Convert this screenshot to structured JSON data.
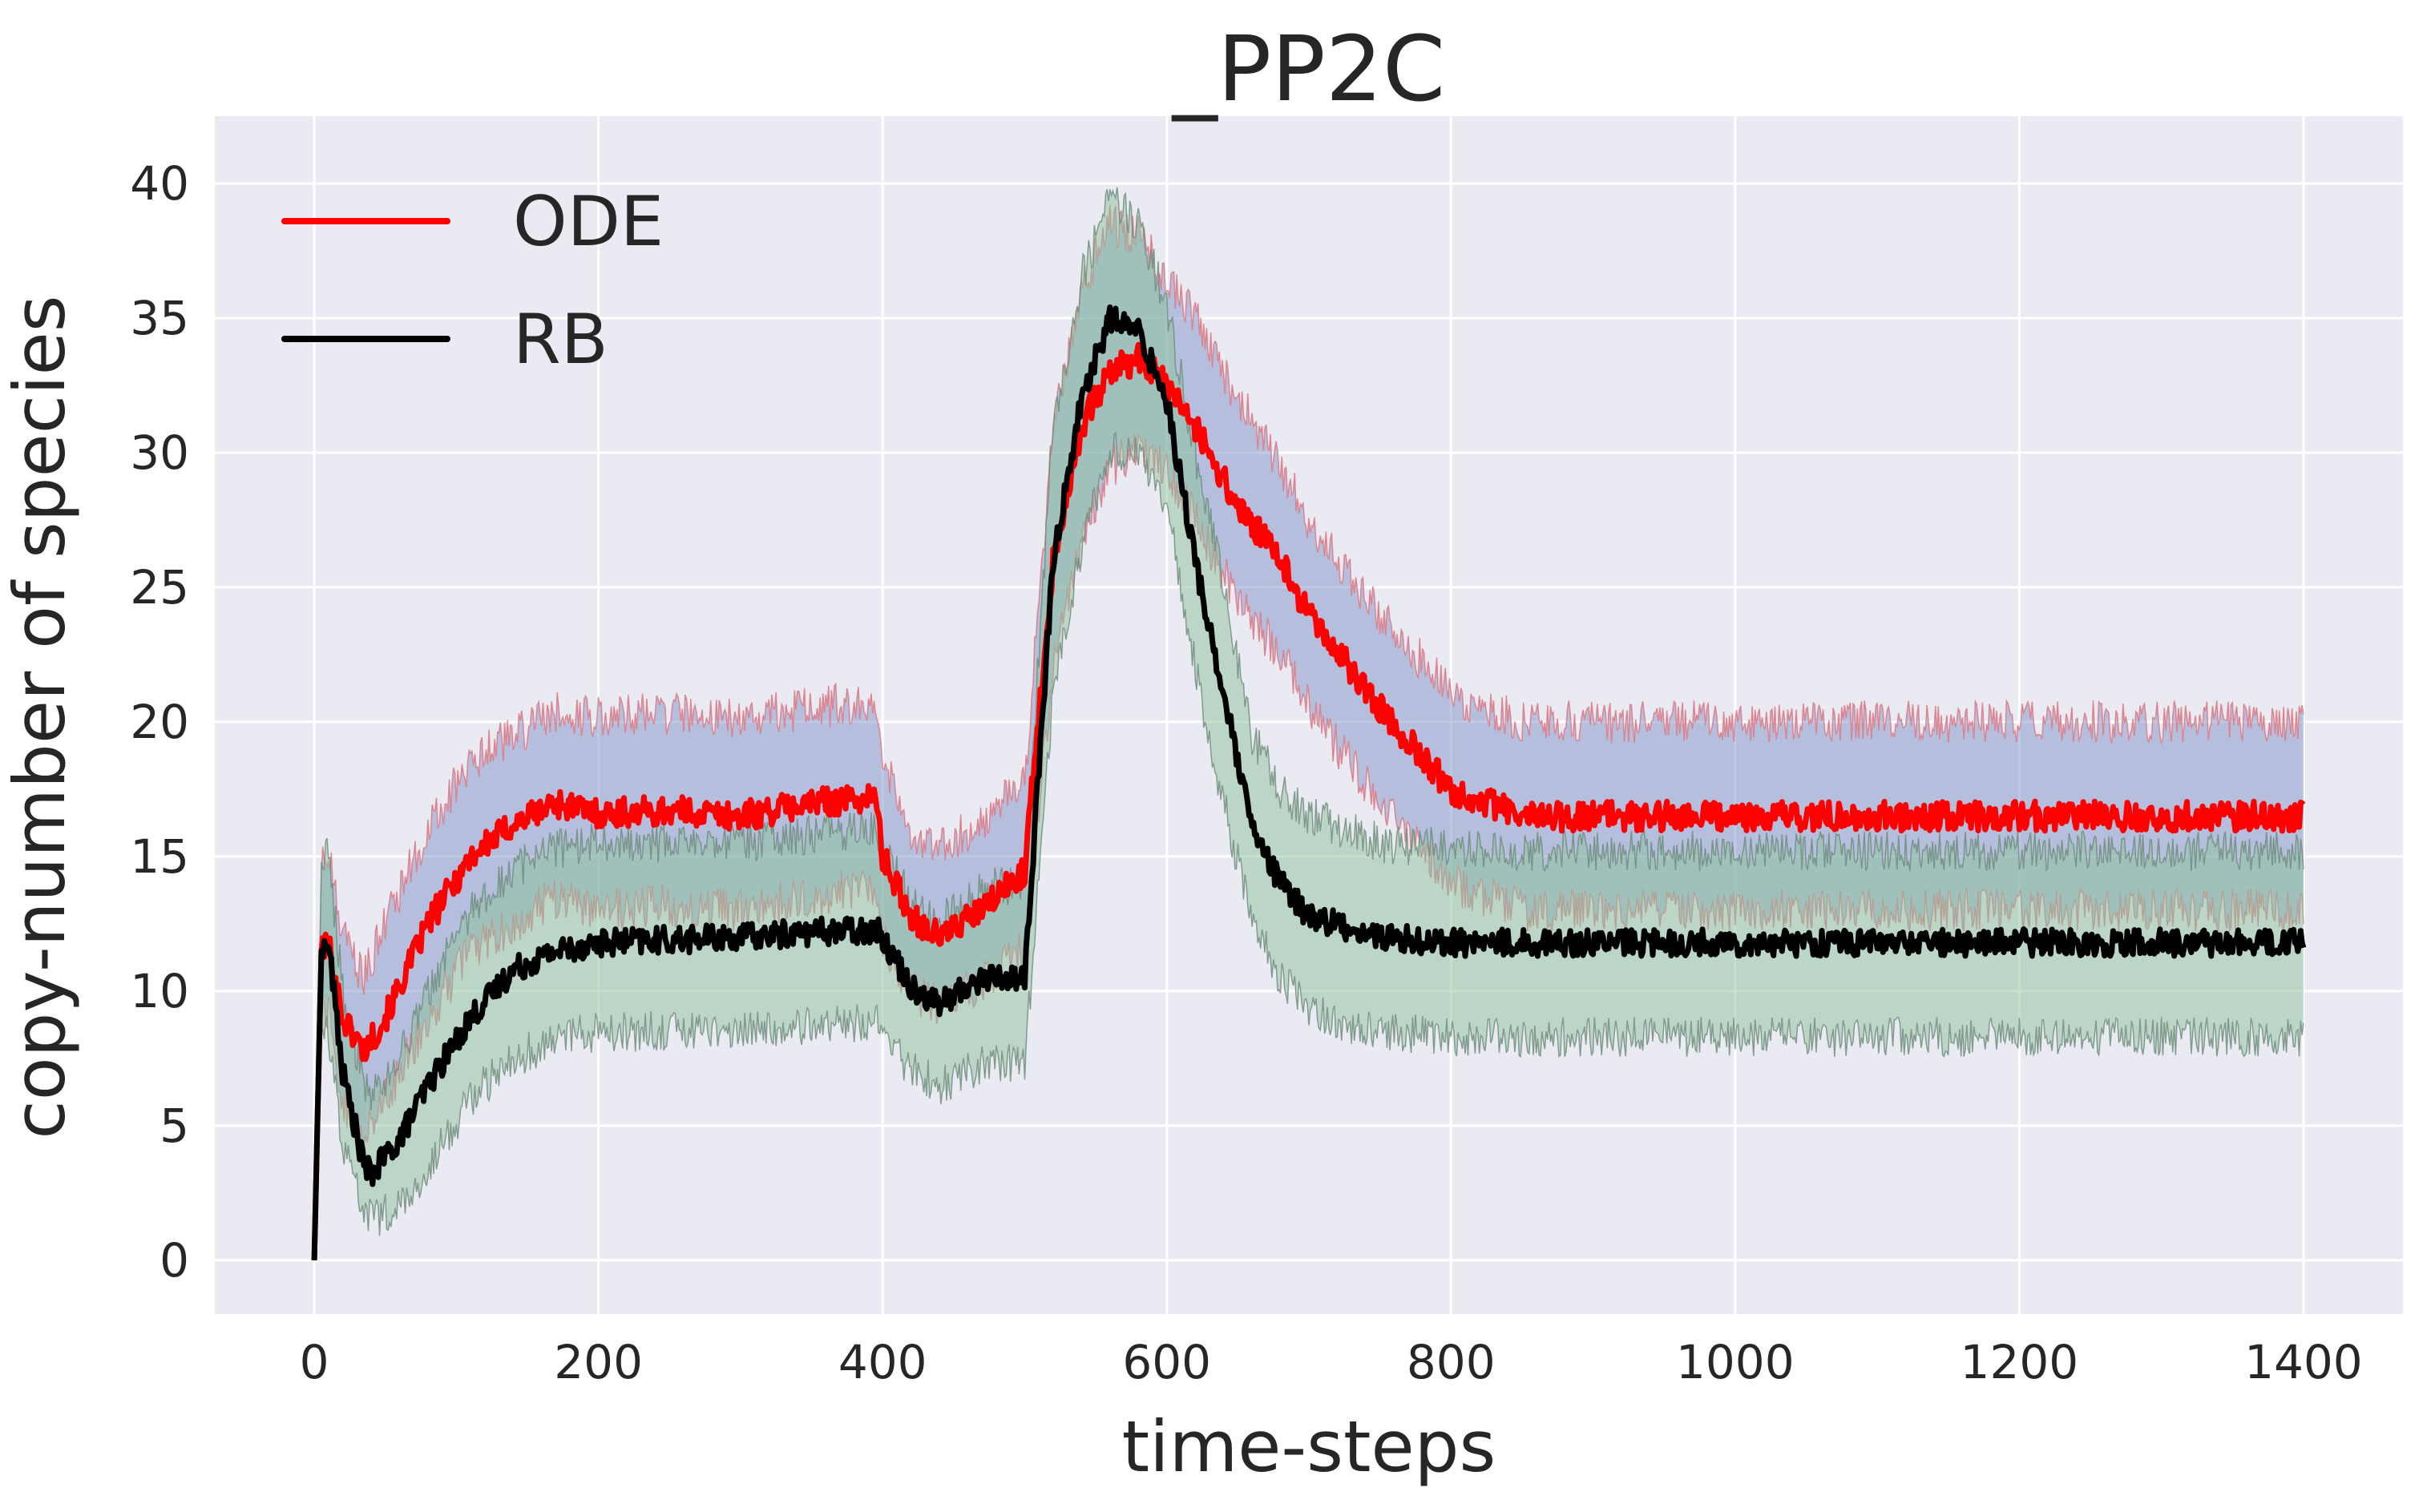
{
  "chart_data": {
    "type": "line",
    "title": "_PP2C",
    "xlabel": "time-steps",
    "ylabel": "copy-number of species",
    "xlim": [
      -70,
      1470
    ],
    "ylim": [
      -2,
      42.5
    ],
    "xticks": [
      0,
      200,
      400,
      600,
      800,
      1000,
      1200,
      1400
    ],
    "yticks": [
      0,
      5,
      10,
      15,
      20,
      25,
      30,
      35,
      40
    ],
    "grid": true,
    "legend_position": "top-left",
    "background": "#eaeaf2",
    "series": [
      {
        "name": "ODE",
        "color": "#ff0000",
        "band_color": "#7f93c8",
        "band_edge_color": "#e0707a",
        "noise": 0.55,
        "band_noise": 0.8,
        "x": [
          0,
          5,
          10,
          20,
          35,
          50,
          80,
          110,
          140,
          170,
          200,
          250,
          300,
          350,
          395,
          400,
          420,
          440,
          470,
          500,
          520,
          540,
          560,
          580,
          600,
          620,
          650,
          680,
          700,
          750,
          800,
          850,
          900,
          950,
          1000,
          1100,
          1200,
          1300,
          1400
        ],
        "mean": [
          0,
          11.5,
          11.8,
          9,
          7.8,
          9,
          12.5,
          15,
          16.2,
          17,
          16.6,
          16.7,
          16.5,
          17,
          17.2,
          15,
          12.8,
          12,
          13,
          14.5,
          26,
          31,
          33,
          33.5,
          32.5,
          31,
          28,
          26,
          24,
          20.5,
          17.5,
          16.5,
          16.5,
          16.5,
          16.5,
          16.5,
          16.5,
          16.5,
          16.5
        ],
        "upper": [
          0,
          14.5,
          15.2,
          12,
          10.5,
          12.5,
          16,
          18.5,
          19.5,
          20.3,
          20.2,
          20.3,
          20.2,
          20.5,
          20.8,
          18.5,
          16,
          15.3,
          16.3,
          17.8,
          31,
          36,
          38.5,
          38,
          36.5,
          35,
          32,
          29.5,
          27.5,
          24,
          21,
          20,
          20,
          20,
          20,
          20,
          20,
          20,
          20
        ],
        "lower": [
          0,
          9,
          9.2,
          6,
          4.5,
          6,
          9,
          11.5,
          12.5,
          13.5,
          13,
          13.2,
          13,
          13.5,
          14,
          12,
          10,
          9.5,
          10.3,
          11.5,
          22,
          27,
          29.5,
          30,
          29.5,
          27.5,
          24.5,
          22.5,
          20.5,
          17,
          14,
          13,
          13,
          13,
          13,
          13,
          13,
          13,
          13
        ]
      },
      {
        "name": "RB",
        "color": "#000000",
        "band_color": "#8cc29b",
        "band_edge_color": "#6e8a7a",
        "noise": 0.5,
        "band_noise": 0.75,
        "x": [
          0,
          5,
          10,
          20,
          35,
          40,
          60,
          80,
          110,
          140,
          170,
          200,
          250,
          300,
          350,
          395,
          400,
          420,
          440,
          470,
          500,
          520,
          540,
          560,
          580,
          600,
          620,
          640,
          660,
          680,
          700,
          750,
          800,
          850,
          900,
          1000,
          1100,
          1200,
          1300,
          1400
        ],
        "mean": [
          0,
          11.5,
          11.8,
          7,
          3.5,
          3.2,
          4.5,
          6.5,
          9,
          10.8,
          11.5,
          11.8,
          11.9,
          12,
          12.2,
          12.3,
          12,
          10.2,
          9.5,
          10.5,
          10.5,
          26,
          32,
          35,
          34.5,
          32,
          26,
          21,
          16,
          14,
          12.8,
          12,
          11.8,
          11.8,
          11.8,
          11.8,
          11.8,
          11.8,
          11.8,
          11.8
        ],
        "upper": [
          0,
          14.8,
          15.2,
          10,
          6.5,
          6,
          7.5,
          10,
          13,
          14.5,
          15.3,
          15.5,
          15.5,
          15.5,
          15.8,
          16,
          15.5,
          13.2,
          12.5,
          13.8,
          14,
          31,
          36.5,
          39.5,
          38.5,
          35.5,
          30,
          25,
          19.5,
          17.5,
          16.5,
          15.5,
          15.3,
          15.2,
          15.2,
          15.2,
          15.2,
          15.2,
          15.2,
          15.2
        ],
        "lower": [
          0,
          8.5,
          8.5,
          4.2,
          1.7,
          1.5,
          2,
          3.5,
          6,
          7.5,
          8.2,
          8.5,
          8.5,
          8.5,
          8.7,
          8.8,
          8.5,
          7,
          6.5,
          7.3,
          7.3,
          21,
          26.5,
          30,
          30,
          28,
          22,
          17,
          12.5,
          10.5,
          9.2,
          8.5,
          8.3,
          8.3,
          8.3,
          8.3,
          8.3,
          8.3,
          8.3,
          8.3
        ]
      }
    ]
  }
}
